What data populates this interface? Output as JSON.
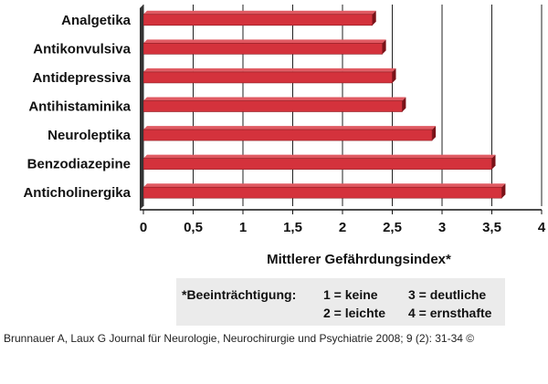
{
  "chart_data": {
    "type": "bar",
    "orientation": "horizontal",
    "categories": [
      "Analgetika",
      "Antikonvulsiva",
      "Antidepressiva",
      "Antihistaminika",
      "Neuroleptika",
      "Benzodiazepine",
      "Anticholinergika"
    ],
    "values": [
      2.3,
      2.4,
      2.5,
      2.6,
      2.9,
      3.5,
      3.6
    ],
    "xlabel": "Mittlerer Gefährdungsindex*",
    "xlim": [
      0,
      4
    ],
    "xticks": [
      "0",
      "0,5",
      "1",
      "1,5",
      "2",
      "2,5",
      "3",
      "3,5",
      "4"
    ],
    "grid": "vertical",
    "bar_color": "#d4323c",
    "bar_side_color": "#7a1218",
    "bar_top_color": "#e05a62"
  },
  "legend": {
    "title": "*Beeinträchtigung:",
    "items": [
      "1 = keine",
      "2 = leichte",
      "3 = deutliche",
      "4 = ernsthafte"
    ]
  },
  "credit": "Brunnauer A, Laux G Journal für Neurologie, Neurochirurgie und Psychiatrie 2008; 9 (2): 31-34 ©"
}
